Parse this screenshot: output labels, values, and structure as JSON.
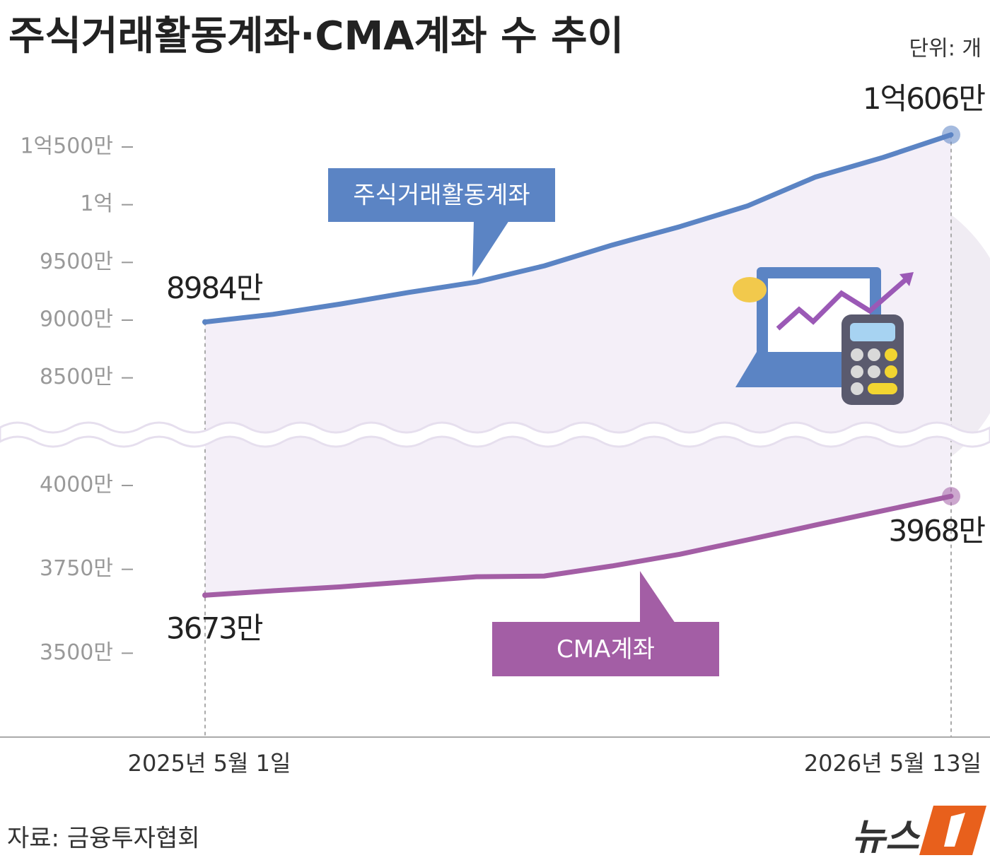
{
  "chart_data": {
    "type": "line",
    "title": "주식거래활동계좌·CMA계좌 수 추이",
    "unit": "단위: 개",
    "source": "자료: 금융투자협회",
    "logo": "뉴스",
    "categories": [
      "2025년 5월 1일",
      null,
      null,
      null,
      null,
      null,
      null,
      null,
      null,
      null,
      null,
      "2026년 5월 13일"
    ],
    "ylim": [
      8100,
      11100
    ],
    "yticks": [
      {
        "value": 8500,
        "label": "8500만"
      },
      {
        "value": 9000,
        "label": "9000만"
      },
      {
        "value": 9500,
        "label": "9500만"
      },
      {
        "value": 10000,
        "label": "1억"
      },
      {
        "value": 10500,
        "label": "1억500만"
      }
    ],
    "y2lim": [
      3250,
      4120
    ],
    "y2ticks": [
      {
        "value": 3500,
        "label": "3500만"
      },
      {
        "value": 3750,
        "label": "3750만"
      },
      {
        "value": 4000,
        "label": "4000만"
      }
    ],
    "series": [
      {
        "name": "주식거래활동계좌",
        "color": "#5b84c4",
        "values": [
          8984,
          9050,
          9140,
          9240,
          9330,
          9470,
          9650,
          9810,
          9990,
          10240,
          10410,
          10606
        ],
        "value_labels": [
          "8984만",
          null,
          null,
          null,
          null,
          null,
          null,
          null,
          null,
          null,
          null,
          "1억606만"
        ]
      },
      {
        "name": "CMA계좌",
        "color": "#a35ea5",
        "axis": "y2",
        "values": [
          3673,
          3686,
          3698,
          3713,
          3728,
          3730,
          3760,
          3795,
          3838,
          3882,
          3925,
          3968
        ],
        "value_labels": [
          "3673만",
          null,
          null,
          null,
          null,
          null,
          null,
          null,
          null,
          null,
          null,
          "3968만"
        ]
      }
    ]
  }
}
